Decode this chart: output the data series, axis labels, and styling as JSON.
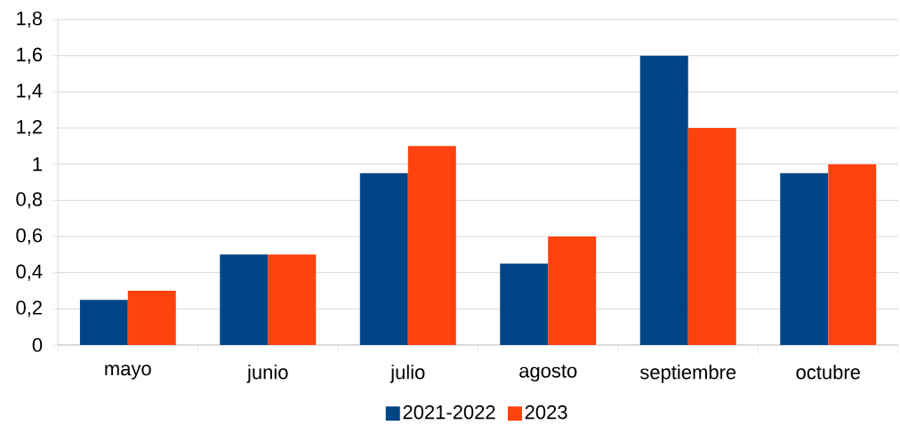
{
  "chart_data": {
    "type": "bar",
    "categories": [
      "mayo",
      "junio",
      "julio",
      "agosto",
      "septiembre",
      "octubre"
    ],
    "series": [
      {
        "name": "2021-2022",
        "color": "#004586",
        "values": [
          0.25,
          0.5,
          0.95,
          0.45,
          1.6,
          0.95
        ]
      },
      {
        "name": "2023",
        "color": "#ff420e",
        "values": [
          0.3,
          0.5,
          1.1,
          0.6,
          1.2,
          1.0
        ]
      }
    ],
    "ylim": [
      0,
      1.8
    ],
    "yticks": [
      0,
      {
        "value": 0.2,
        "label": "0,2"
      },
      {
        "value": 0.4,
        "label": "0,4"
      },
      {
        "value": 0.6,
        "label": "0,6"
      },
      {
        "value": 0.8,
        "label": "0,8"
      },
      1,
      {
        "value": 1.2,
        "label": "1,2"
      },
      {
        "value": 1.4,
        "label": "1,4"
      },
      {
        "value": 1.6,
        "label": "1,6"
      },
      {
        "value": 1.8,
        "label": "1,8"
      }
    ],
    "grid": "y",
    "legend": "bottom"
  }
}
